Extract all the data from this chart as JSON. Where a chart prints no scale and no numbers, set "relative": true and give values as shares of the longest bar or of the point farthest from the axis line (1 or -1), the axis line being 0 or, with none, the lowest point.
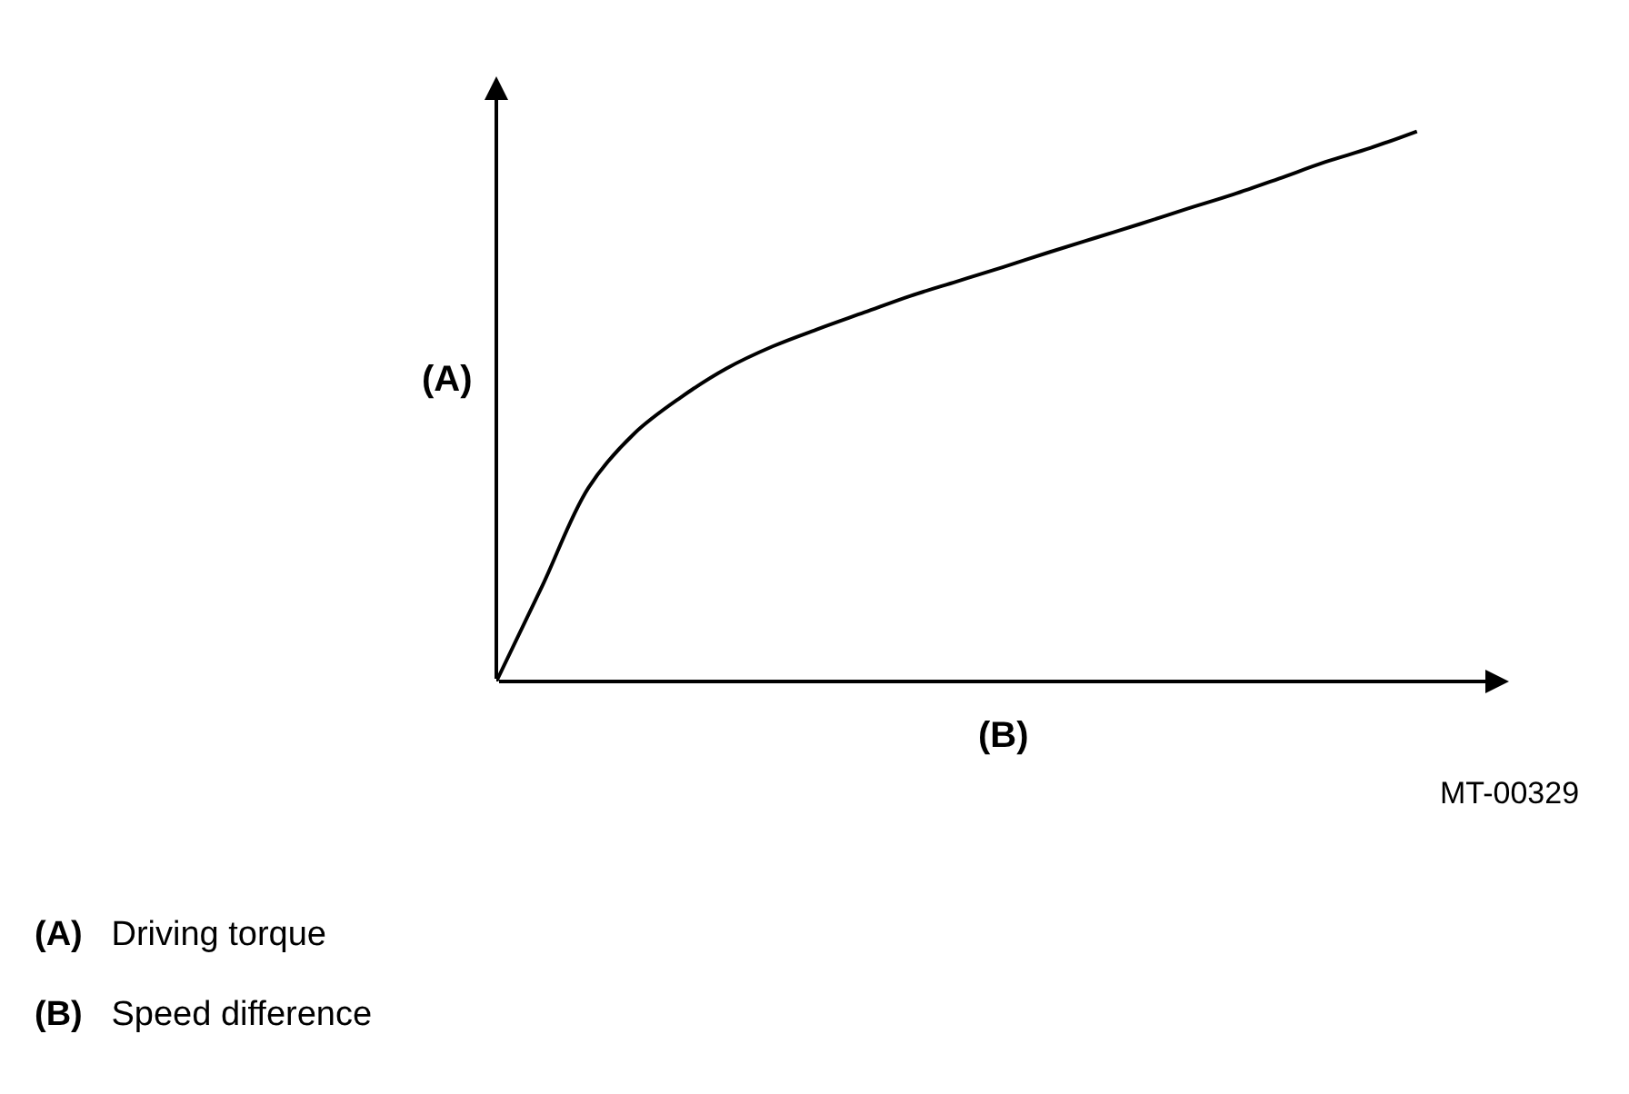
{
  "chart_data": {
    "type": "line",
    "relative": true,
    "xlabel": "(B)",
    "ylabel": "(A)",
    "categories": [
      null,
      null,
      null,
      null,
      null,
      null,
      null,
      null,
      null,
      null,
      null,
      null,
      null,
      null,
      null,
      null,
      null,
      null,
      null,
      null,
      null
    ],
    "series": [
      {
        "color": "#000000",
        "values": [
          0,
          0.174,
          0.352,
          0.451,
          0.516,
          0.569,
          0.609,
          0.641,
          0.671,
          0.701,
          0.727,
          0.753,
          0.78,
          0.806,
          0.832,
          0.859,
          0.885,
          0.914,
          0.944,
          0.97,
          1
        ]
      }
    ],
    "annotations": [
      "MT-00329",
      "(A) Driving torque",
      "(B) Speed difference"
    ],
    "marker": "none",
    "line_style": "solid"
  }
}
